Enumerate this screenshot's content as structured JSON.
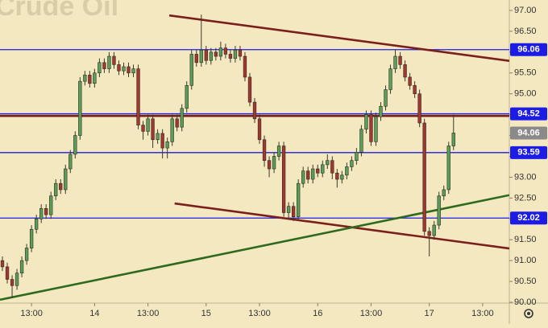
{
  "chart_data": {
    "type": "candlestick",
    "watermark": "Crude Oil",
    "up_color": "#5a9e5a",
    "down_color": "#a3362f",
    "xlim": [
      -0.5,
      104.5
    ],
    "ylim": [
      90,
      97.25
    ],
    "xticks": [
      {
        "value": 6,
        "label": "13:00"
      },
      {
        "value": 19,
        "label": "14"
      },
      {
        "value": 30,
        "label": "13:00"
      },
      {
        "value": 42,
        "label": "15"
      },
      {
        "value": 53,
        "label": "13:00"
      },
      {
        "value": 65,
        "label": "16"
      },
      {
        "value": 76,
        "label": "13:00"
      },
      {
        "value": 88,
        "label": "17"
      },
      {
        "value": 99,
        "label": "13:00"
      }
    ],
    "yticks": [
      {
        "value": 90,
        "label": "90.00"
      },
      {
        "value": 90.5,
        "label": "90.50"
      },
      {
        "value": 91,
        "label": "91.00"
      },
      {
        "value": 91.5,
        "label": "91.50"
      },
      {
        "value": 92,
        "label": "92.00"
      },
      {
        "value": 92.5,
        "label": "92.50"
      },
      {
        "value": 93,
        "label": "93.00"
      },
      {
        "value": 93.5,
        "label": "93.50"
      },
      {
        "value": 94,
        "label": "94.00"
      },
      {
        "value": 94.5,
        "label": "94.50"
      },
      {
        "value": 95,
        "label": "95.00"
      },
      {
        "value": 95.5,
        "label": "95.50"
      },
      {
        "value": 96,
        "label": "96.00"
      },
      {
        "value": 96.5,
        "label": "96.50"
      },
      {
        "value": 97,
        "label": "97.00"
      }
    ],
    "open": [
      91.0,
      90.85,
      90.55,
      90.4,
      90.7,
      91.0,
      91.3,
      91.75,
      92.0,
      92.25,
      92.1,
      92.55,
      92.85,
      92.7,
      93.2,
      93.55,
      94.0,
      95.3,
      95.45,
      95.25,
      95.5,
      95.75,
      95.6,
      95.9,
      95.7,
      95.55,
      95.65,
      95.5,
      95.6,
      94.25,
      94.1,
      94.4,
      93.9,
      94.05,
      93.7,
      93.85,
      94.4,
      94.2,
      94.65,
      95.2,
      95.95,
      95.75,
      96.05,
      95.8,
      96.0,
      95.9,
      96.1,
      95.95,
      95.85,
      96.05,
      95.9,
      95.4,
      94.8,
      94.4,
      93.9,
      93.4,
      93.2,
      93.5,
      93.75,
      92.15,
      92.3,
      92.05,
      92.85,
      93.15,
      92.95,
      93.2,
      93.1,
      93.3,
      93.4,
      93.1,
      92.95,
      93.05,
      93.25,
      93.4,
      93.6,
      94.15,
      94.5,
      93.85,
      94.45,
      94.7,
      95.1,
      95.6,
      95.9,
      95.7,
      95.4,
      95.2,
      95.0,
      94.3,
      91.7,
      91.6,
      91.85,
      92.55,
      92.7,
      93.75
    ],
    "high": [
      91.1,
      90.95,
      90.65,
      90.8,
      91.1,
      91.4,
      91.85,
      92.1,
      92.35,
      92.35,
      92.65,
      92.95,
      92.95,
      93.3,
      93.65,
      94.1,
      95.4,
      95.55,
      95.55,
      95.6,
      95.85,
      95.85,
      96.0,
      96.0,
      95.8,
      95.75,
      95.75,
      95.7,
      95.7,
      94.35,
      94.5,
      94.5,
      94.15,
      94.15,
      93.95,
      94.5,
      94.5,
      94.75,
      95.3,
      96.05,
      96.05,
      96.9,
      96.15,
      96.1,
      96.1,
      96.25,
      96.2,
      96.05,
      96.15,
      96.15,
      96.0,
      95.5,
      94.9,
      94.5,
      94.0,
      93.5,
      93.6,
      93.85,
      93.85,
      92.4,
      92.4,
      92.95,
      93.25,
      93.25,
      93.3,
      93.3,
      93.4,
      93.55,
      93.5,
      93.2,
      93.15,
      93.35,
      93.5,
      93.7,
      94.25,
      94.6,
      94.6,
      94.55,
      94.8,
      95.2,
      95.7,
      96.05,
      96.0,
      95.8,
      95.5,
      95.3,
      95.1,
      94.4,
      91.8,
      91.95,
      92.65,
      92.8,
      93.85,
      94.5
    ],
    "low": [
      90.75,
      90.45,
      90.1,
      90.3,
      90.6,
      90.9,
      91.2,
      91.65,
      91.9,
      92.0,
      92.0,
      92.45,
      92.6,
      92.6,
      93.1,
      93.45,
      93.9,
      95.2,
      95.15,
      95.15,
      95.4,
      95.5,
      95.5,
      95.6,
      95.45,
      95.45,
      95.4,
      95.4,
      94.15,
      93.9,
      94.0,
      93.7,
      93.8,
      93.45,
      93.45,
      93.75,
      94.1,
      94.1,
      94.55,
      95.1,
      95.65,
      95.65,
      95.7,
      95.7,
      95.8,
      95.8,
      95.85,
      95.75,
      95.75,
      95.8,
      95.3,
      94.7,
      94.3,
      93.8,
      93.25,
      93.0,
      93.1,
      93.4,
      92.05,
      92.0,
      91.95,
      91.95,
      92.75,
      92.85,
      92.85,
      93.0,
      93.0,
      93.2,
      92.95,
      92.75,
      92.85,
      92.95,
      93.15,
      93.3,
      93.5,
      94.05,
      93.75,
      93.75,
      94.35,
      94.6,
      95.0,
      95.5,
      95.6,
      95.3,
      95.1,
      94.9,
      94.2,
      91.6,
      91.1,
      91.5,
      91.75,
      92.45,
      92.6,
      93.65
    ],
    "close": [
      90.85,
      90.55,
      90.4,
      90.7,
      91.0,
      91.3,
      91.75,
      92.0,
      92.25,
      92.1,
      92.55,
      92.85,
      92.7,
      93.2,
      93.55,
      94.0,
      95.3,
      95.45,
      95.25,
      95.5,
      95.75,
      95.6,
      95.9,
      95.7,
      95.55,
      95.65,
      95.5,
      95.6,
      94.25,
      94.1,
      94.4,
      93.9,
      94.05,
      93.7,
      93.85,
      94.4,
      94.2,
      94.65,
      95.2,
      95.95,
      95.75,
      96.05,
      95.8,
      96.0,
      95.9,
      96.1,
      95.95,
      95.85,
      96.05,
      95.9,
      95.4,
      94.8,
      94.4,
      93.9,
      93.4,
      93.2,
      93.5,
      93.75,
      92.15,
      92.3,
      92.05,
      92.85,
      93.15,
      92.95,
      93.2,
      93.1,
      93.3,
      93.4,
      93.1,
      92.95,
      93.05,
      93.25,
      93.4,
      93.6,
      94.15,
      94.5,
      93.85,
      94.45,
      94.7,
      95.1,
      95.6,
      95.9,
      95.7,
      95.4,
      95.2,
      95.0,
      94.3,
      91.7,
      91.6,
      91.85,
      92.55,
      92.7,
      93.75,
      94.06
    ],
    "levels": [
      {
        "value": 96.06,
        "label": "96.06",
        "color": "#1c1ce6"
      },
      {
        "value": 94.52,
        "label": "94.52",
        "color": "#1c1ce6"
      },
      {
        "value": 93.59,
        "label": "93.59",
        "color": "#1c1ce6"
      },
      {
        "value": 92.02,
        "label": "92.02",
        "color": "#1c1ce6"
      }
    ],
    "last_price": {
      "value": 94.06,
      "label": "94.06",
      "color": "#8a8a8a"
    },
    "trendlines": [
      {
        "color": "#7a1f1a",
        "x": [
          34.4,
          104.5
        ],
        "y": [
          96.88,
          95.79
        ]
      },
      {
        "color": "#7a1f1a",
        "x": [
          35.5,
          104.5
        ],
        "y": [
          92.37,
          91.29
        ]
      },
      {
        "color": "#7a1f1a",
        "x": [
          -0.5,
          104.5
        ],
        "y": [
          94.47,
          94.47
        ]
      },
      {
        "color": "#2d6a1e",
        "x": [
          -0.5,
          104.5
        ],
        "y": [
          90.06,
          92.57
        ]
      }
    ]
  }
}
